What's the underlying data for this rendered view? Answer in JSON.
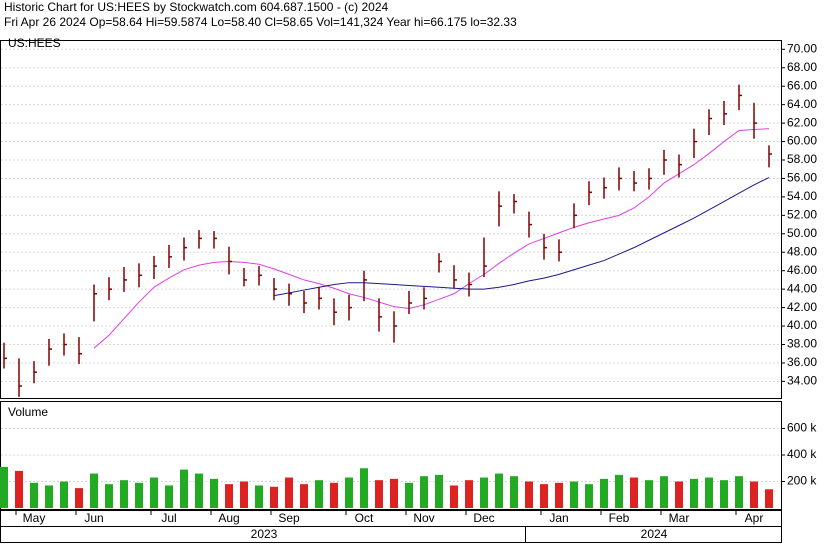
{
  "chart_data": [
    {
      "type": "ohlc",
      "title": "Historic Chart for US:HEES by Stockwatch.com 604.687.1500 - (c) 2024",
      "subtitle": "Fri Apr 26 2024   Op=58.64   Hi=59.5874   Lo=58.40   Cl=58.65   Vol=141,324   Year hi=66.175   lo=32.33",
      "symbol": "US:HEES",
      "color": "#800000",
      "categories": [
        null,
        null,
        "May",
        null,
        null,
        null,
        "Jun",
        null,
        null,
        null,
        null,
        "Jul",
        null,
        null,
        null,
        "Aug",
        null,
        null,
        null,
        "Sep",
        null,
        null,
        null,
        null,
        "Oct",
        null,
        null,
        null,
        "Nov",
        null,
        null,
        null,
        "Dec",
        null,
        null,
        null,
        null,
        "Jan",
        null,
        null,
        null,
        "Feb",
        null,
        null,
        null,
        "Mar",
        null,
        null,
        null,
        null,
        "Apr",
        null
      ],
      "years": [
        "2023",
        "2024"
      ],
      "high": [
        38.2,
        36.5,
        36.2,
        38.6,
        39.2,
        38.8,
        44.5,
        45.3,
        46.4,
        46.8,
        47.6,
        48.8,
        49.6,
        50.4,
        50.3,
        48.6,
        46.3,
        46.5,
        45.2,
        44.6,
        43.8,
        44.2,
        43,
        43.4,
        46,
        43,
        41.6,
        43.8,
        44.2,
        47.9,
        46.6,
        45.8,
        49.6,
        54.6,
        54.3,
        52.4,
        50,
        49.4,
        53.3,
        55.7,
        56.1,
        57.2,
        56.8,
        57.1,
        59.1,
        58.6,
        61.4,
        63.5,
        64.4,
        66.175,
        64.2,
        59.5874
      ],
      "low": [
        35.4,
        32.33,
        33.8,
        35.7,
        36.8,
        35.9,
        40.5,
        42.8,
        43.7,
        44.2,
        45.1,
        46.3,
        47.1,
        48.4,
        48.4,
        45.6,
        44.3,
        44.4,
        42.8,
        42.2,
        41.4,
        41.8,
        40.1,
        40.6,
        42.7,
        39.4,
        38.2,
        41.3,
        41.8,
        45.8,
        44.1,
        43.2,
        45.3,
        50.8,
        52.2,
        49.6,
        47.2,
        47,
        50.6,
        53.1,
        53.8,
        54.7,
        54.6,
        54.8,
        56.4,
        56.1,
        58.2,
        60.7,
        61.8,
        63.4,
        60.3,
        57.2
      ],
      "close": [
        36.5,
        33.5,
        35,
        37.5,
        38,
        37,
        43.5,
        44,
        45,
        45.5,
        46.5,
        47.5,
        48.5,
        49.5,
        49.5,
        47,
        45,
        45.5,
        44,
        43.5,
        42.5,
        43,
        41.5,
        42,
        45,
        41,
        40,
        42.5,
        43,
        47,
        45,
        44.5,
        46.5,
        53,
        53.5,
        51,
        48.5,
        48,
        52,
        54.5,
        55,
        56,
        55.5,
        56,
        58,
        57.5,
        60,
        62.5,
        63,
        65,
        62,
        58.65
      ],
      "lines": [
        {
          "color": "#e040e0",
          "values": [
            null,
            null,
            null,
            null,
            null,
            null,
            37.6,
            39,
            40.8,
            42.6,
            44.2,
            45.2,
            46.1,
            46.6,
            46.9,
            47,
            46.9,
            46.7,
            46.2,
            45.6,
            45,
            44.6,
            44.1,
            43.5,
            43.1,
            42.6,
            42.1,
            41.9,
            42.3,
            42.9,
            43.5,
            44.6,
            45.6,
            46.8,
            47.9,
            48.9,
            49.5,
            50.1,
            50.7,
            51.2,
            51.6,
            52,
            52.8,
            54,
            55.5,
            56.5,
            57.5,
            58.7,
            60,
            61.2,
            61.3,
            61.4
          ]
        },
        {
          "color": "#1a1a8c",
          "values": [
            null,
            null,
            null,
            null,
            null,
            null,
            null,
            null,
            null,
            null,
            null,
            null,
            null,
            null,
            null,
            null,
            null,
            null,
            43.3,
            43.6,
            43.9,
            44.2,
            44.5,
            44.7,
            44.7,
            44.6,
            44.5,
            44.4,
            44.3,
            44.2,
            44.1,
            44,
            44,
            44.2,
            44.5,
            44.9,
            45.2,
            45.6,
            46.1,
            46.6,
            47.1,
            47.8,
            48.5,
            49.3,
            50.1,
            50.9,
            51.7,
            52.6,
            53.5,
            54.4,
            55.3,
            56.1
          ]
        }
      ],
      "ylim": [
        32.2,
        70.9
      ],
      "yticks": [
        {
          "value": 34,
          "label": "34.00"
        },
        {
          "value": 36,
          "label": "36.00"
        },
        {
          "value": 38,
          "label": "38.00"
        },
        {
          "value": 40,
          "label": "40.00"
        },
        {
          "value": 42,
          "label": "42.00"
        },
        {
          "value": 44,
          "label": "44.00"
        },
        {
          "value": 46,
          "label": "46.00"
        },
        {
          "value": 48,
          "label": "48.00"
        },
        {
          "value": 50,
          "label": "50.00"
        },
        {
          "value": 52,
          "label": "52.00"
        },
        {
          "value": 54,
          "label": "54.00"
        },
        {
          "value": 56,
          "label": "56.00"
        },
        {
          "value": 58,
          "label": "58.00"
        },
        {
          "value": 60,
          "label": "60.00"
        },
        {
          "value": 62,
          "label": "62.00"
        },
        {
          "value": 64,
          "label": "64.00"
        },
        {
          "value": 66,
          "label": "66.00"
        },
        {
          "value": 68,
          "label": "68.00"
        },
        {
          "value": 70,
          "label": "70.00"
        }
      ],
      "grid": true
    },
    {
      "type": "bar",
      "title": "Volume",
      "up_color": "#22aa22",
      "down_color": "#dd2222",
      "values": [
        310000,
        280000,
        190000,
        170000,
        200000,
        150000,
        260000,
        180000,
        210000,
        190000,
        230000,
        170000,
        290000,
        260000,
        220000,
        180000,
        200000,
        170000,
        160000,
        230000,
        180000,
        210000,
        190000,
        230000,
        300000,
        210000,
        220000,
        190000,
        240000,
        250000,
        170000,
        210000,
        230000,
        260000,
        240000,
        200000,
        180000,
        190000,
        200000,
        180000,
        220000,
        250000,
        230000,
        210000,
        240000,
        200000,
        220000,
        230000,
        210000,
        240000,
        200000,
        141324
      ],
      "ylim": [
        0,
        800000
      ],
      "yticks": [
        {
          "value": 200000,
          "label": "200 k"
        },
        {
          "value": 400000,
          "label": "400 k"
        },
        {
          "value": 600000,
          "label": "600 k"
        }
      ],
      "grid": true
    }
  ]
}
